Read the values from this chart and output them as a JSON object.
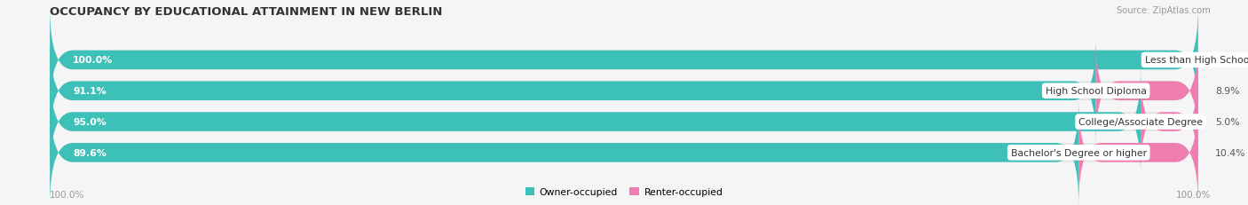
{
  "title": "OCCUPANCY BY EDUCATIONAL ATTAINMENT IN NEW BERLIN",
  "source": "Source: ZipAtlas.com",
  "categories": [
    "Less than High School",
    "High School Diploma",
    "College/Associate Degree",
    "Bachelor's Degree or higher"
  ],
  "owner_values": [
    100.0,
    91.1,
    95.0,
    89.6
  ],
  "renter_values": [
    0.0,
    8.9,
    5.0,
    10.4
  ],
  "owner_color": "#3DC0B8",
  "renter_color": "#F07DB0",
  "renter_color_light": "#F9C0D8",
  "bar_bg_color": "#E4E4E4",
  "owner_label": "Owner-occupied",
  "renter_label": "Renter-occupied",
  "title_fontsize": 9.5,
  "label_fontsize": 7.8,
  "value_fontsize": 7.8,
  "tick_fontsize": 7.5,
  "source_fontsize": 7.2,
  "bar_height": 0.62,
  "bar_gap": 0.38,
  "background_color": "#F5F5F5",
  "axis_left_label": "100.0%",
  "axis_right_label": "100.0%"
}
